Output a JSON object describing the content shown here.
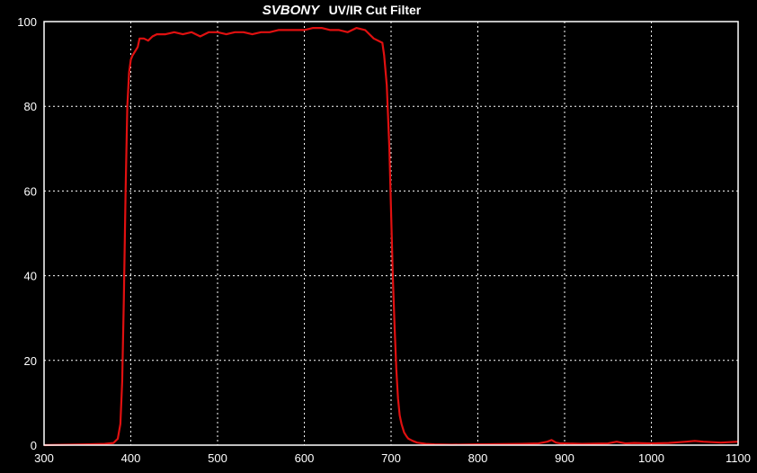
{
  "chart_data": {
    "type": "line",
    "title_brand": "SVBONY",
    "title_rest": "UV/IR Cut Filter",
    "xlabel": "",
    "ylabel": "",
    "xlim": [
      300,
      1100
    ],
    "ylim": [
      0,
      100
    ],
    "x_ticks": [
      300,
      400,
      500,
      600,
      700,
      800,
      900,
      1000,
      1100
    ],
    "y_ticks": [
      0,
      20,
      40,
      60,
      80,
      100
    ],
    "grid": true,
    "colors": {
      "background": "#000000",
      "axes": "#ffffff",
      "grid": "#ffffff",
      "line": "#e01010"
    },
    "series": [
      {
        "x": [
          300,
          350,
          370,
          380,
          385,
          388,
          390,
          392,
          394,
          396,
          398,
          400,
          402,
          405,
          408,
          410,
          415,
          420,
          425,
          430,
          440,
          450,
          460,
          470,
          480,
          490,
          500,
          510,
          520,
          530,
          540,
          550,
          560,
          570,
          580,
          590,
          600,
          610,
          620,
          630,
          640,
          650,
          660,
          670,
          680,
          685,
          690,
          692,
          695,
          698,
          700,
          702,
          704,
          706,
          708,
          710,
          712,
          715,
          718,
          720,
          725,
          730,
          740,
          750,
          770,
          800,
          850,
          870,
          880,
          885,
          890,
          895,
          900,
          920,
          950,
          960,
          970,
          980,
          1000,
          1020,
          1040,
          1050,
          1060,
          1080,
          1100
        ],
        "y": [
          0,
          0.2,
          0.3,
          0.5,
          1.5,
          5,
          15,
          35,
          60,
          80,
          88,
          91,
          92,
          93,
          94,
          96,
          96,
          95.5,
          96.5,
          97,
          97,
          97.5,
          97,
          97.5,
          96.5,
          97.5,
          97.5,
          97,
          97.5,
          97.5,
          97,
          97.5,
          97.5,
          98,
          98,
          98,
          98,
          98.5,
          98.5,
          98,
          98,
          97.5,
          98.5,
          98,
          96,
          95.5,
          95,
          92,
          85,
          70,
          55,
          40,
          28,
          18,
          11,
          7,
          5,
          3,
          2,
          1.5,
          1,
          0.6,
          0.3,
          0.2,
          0.1,
          0.2,
          0.3,
          0.4,
          0.8,
          1.2,
          0.6,
          0.4,
          0.4,
          0.3,
          0.4,
          0.8,
          0.4,
          0.5,
          0.4,
          0.5,
          0.8,
          1,
          0.8,
          0.6,
          0.8
        ]
      }
    ]
  }
}
